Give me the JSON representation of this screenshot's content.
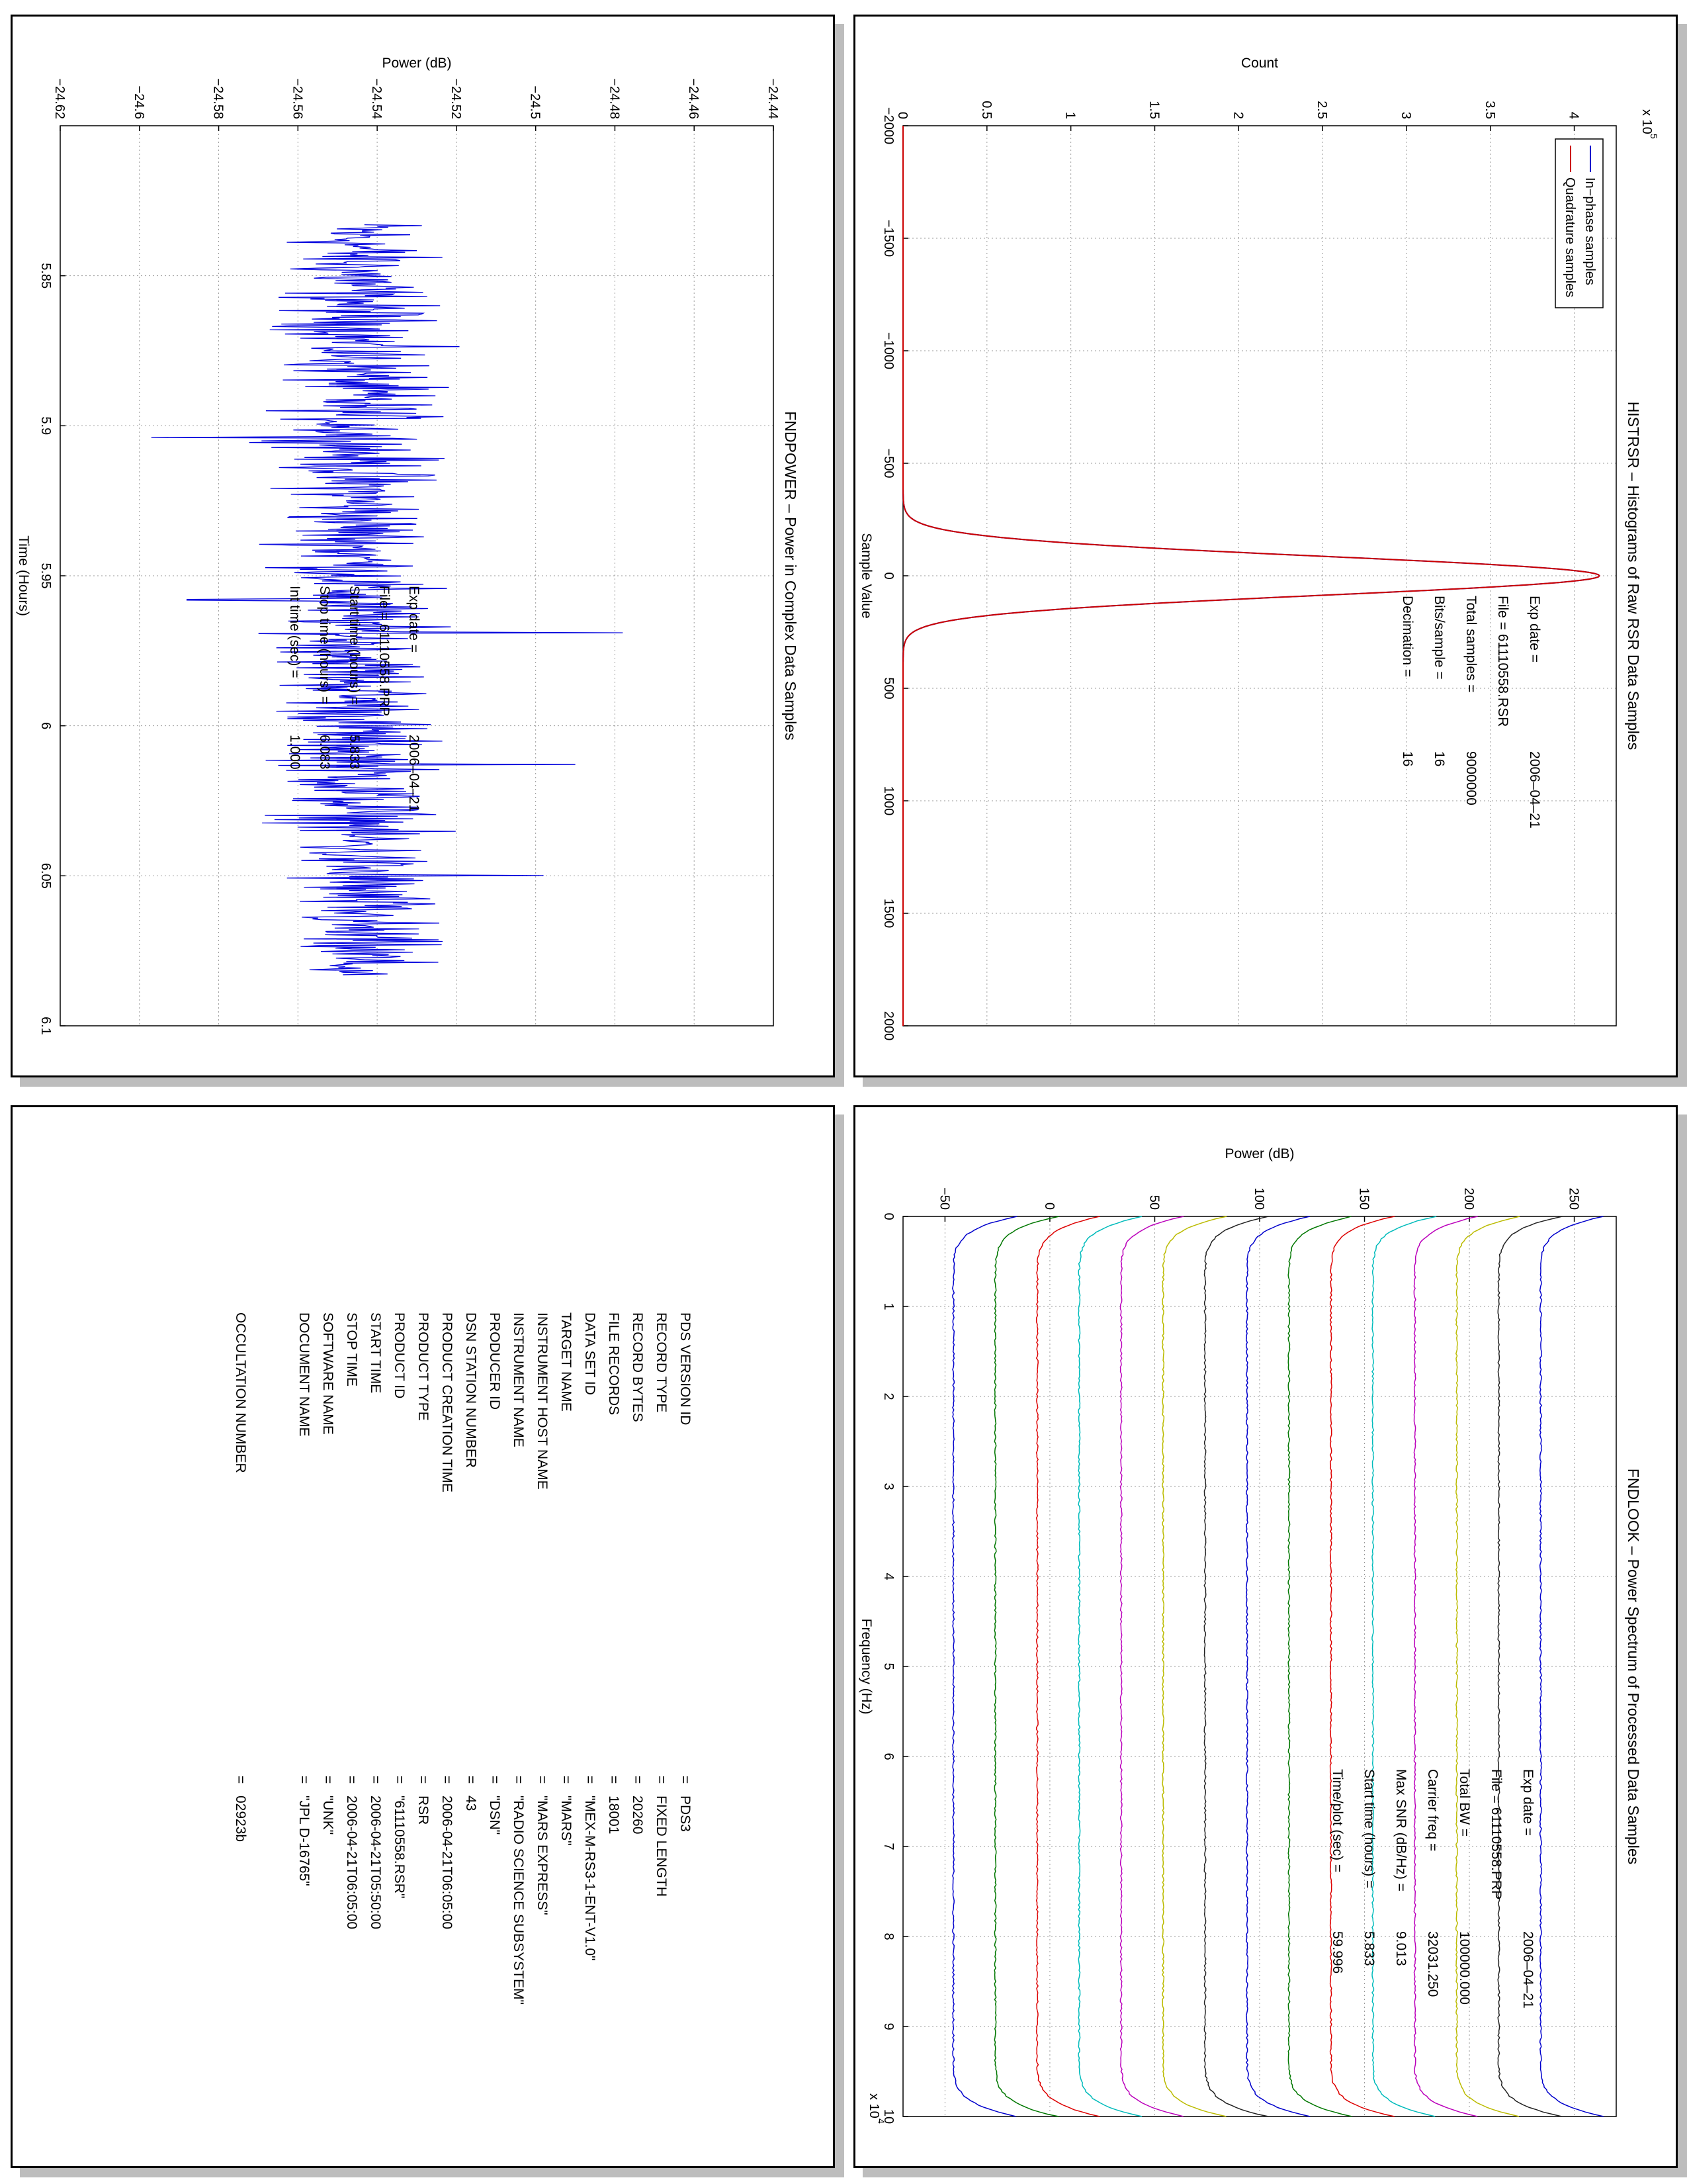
{
  "panels": {
    "fndpower": {
      "title": "FNDPOWER – Power in Complex Data Samples",
      "info": [
        {
          "k": "Exp date =",
          "v": "2006–04–21"
        },
        {
          "k": "File = 61110558.PRP",
          "v": ""
        },
        {
          "k": "Start time (hours) =",
          "v": "5.833"
        },
        {
          "k": "Stop time (hours) =",
          "v": "6.083"
        },
        {
          "k": "Int time (sec) =",
          "v": "1.000"
        }
      ]
    },
    "histrsr": {
      "title": "HISTRSR – Histograms of Raw RSR Data Samples",
      "info": [
        {
          "k": "Exp date =",
          "v": "2006–04–21"
        },
        {
          "k": "File = 61110558.RSR",
          "v": ""
        },
        {
          "k": "Total samples =",
          "v": "9000000"
        },
        {
          "k": "Bits/sample =",
          "v": "16"
        },
        {
          "k": "Decimation =",
          "v": "16"
        }
      ]
    },
    "fndlook": {
      "title": "FNDLOOK – Power Spectrum of Processed Data Samples",
      "info": [
        {
          "k": "Exp date =",
          "v": "2006–04–21"
        },
        {
          "k": "File = 61110558.PRP",
          "v": ""
        },
        {
          "k": "Total BW =",
          "v": "100000.000"
        },
        {
          "k": "Carrier freq =",
          "v": "32031.250"
        },
        {
          "k": "Max SNR (dB/Hz) =",
          "v": "9.013"
        },
        {
          "k": "Start time (hours) =",
          "v": "5.833"
        },
        {
          "k": "Time/plot (sec) =",
          "v": "59.996"
        }
      ]
    },
    "label": {
      "rows": [
        {
          "k": "PDS VERSION ID",
          "v": "PDS3"
        },
        {
          "k": "RECORD TYPE",
          "v": "FIXED LENGTH"
        },
        {
          "k": "RECORD BYTES",
          "v": "20260"
        },
        {
          "k": "FILE RECORDS",
          "v": "18001"
        },
        {
          "k": "DATA SET ID",
          "v": "\"MEX-M-RS3-1-ENT-V1.0\""
        },
        {
          "k": "TARGET NAME",
          "v": "\"MARS\""
        },
        {
          "k": "INSTRUMENT HOST NAME",
          "v": "\"MARS EXPRESS\""
        },
        {
          "k": "INSTRUMENT NAME",
          "v": "\"RADIO SCIENCE SUBSYSTEM\""
        },
        {
          "k": "PRODUCER ID",
          "v": "\"DSN\""
        },
        {
          "k": "DSN STATION NUMBER",
          "v": "43"
        },
        {
          "k": "PRODUCT CREATION TIME",
          "v": "2006-04-21T06:05:00"
        },
        {
          "k": "PRODUCT TYPE",
          "v": "RSR"
        },
        {
          "k": "PRODUCT ID",
          "v": "\"61110558.RSR\""
        },
        {
          "k": "START TIME",
          "v": "2006-04-21T05:50:00"
        },
        {
          "k": "STOP TIME",
          "v": "2006-04-21T06:05:00"
        },
        {
          "k": "SOFTWARE NAME",
          "v": "\"UNK\""
        },
        {
          "k": "DOCUMENT NAME",
          "v": "\"JPL D-16765\""
        }
      ],
      "occultation": {
        "k": "OCCULTATION NUMBER",
        "v": "02923b"
      }
    }
  },
  "chart_data": [
    {
      "id": "fndpower",
      "type": "line",
      "title": "FNDPOWER – Power in Complex Data Samples",
      "xlabel": "Time (Hours)",
      "ylabel": "Power (dB)",
      "xlim": [
        5.8,
        6.1
      ],
      "ylim": [
        -24.62,
        -24.44
      ],
      "xticks": [
        5.85,
        5.9,
        5.95,
        6,
        6.05,
        6.1
      ],
      "xtick_labels": [
        "5.85",
        "5.9",
        "5.95",
        "6",
        "6.05",
        "6.1"
      ],
      "yticks": [
        -24.62,
        -24.6,
        -24.58,
        -24.56,
        -24.54,
        -24.52,
        -24.5,
        -24.48,
        -24.46,
        -24.44
      ],
      "ytick_labels": [
        "−24.62",
        "−24.6",
        "−24.58",
        "−24.56",
        "−24.54",
        "−24.52",
        "−24.5",
        "−24.48",
        "−24.46",
        "−24.44"
      ],
      "grid": true,
      "color": "#0000dd",
      "series_summary": {
        "x_start": 5.833,
        "x_end": 6.083,
        "samples": 900,
        "mean": -24.545,
        "spread": 0.012,
        "min": -24.597,
        "max": -24.478
      },
      "spikes": [
        [
          5.904,
          -24.597
        ],
        [
          5.969,
          -24.478
        ],
        [
          6.013,
          -24.49
        ],
        [
          5.958,
          -24.588
        ],
        [
          6.05,
          -24.498
        ]
      ]
    },
    {
      "id": "histrsr",
      "type": "line",
      "title": "HISTRSR – Histograms of Raw RSR Data Samples",
      "xlabel": "Sample Value",
      "ylabel": "Count",
      "y_multiplier": "x 10",
      "y_multiplier_exp": "5",
      "xlim": [
        -2000,
        2000
      ],
      "ylim": [
        0,
        4.25
      ],
      "xticks": [
        -2000,
        -1500,
        -1000,
        -500,
        0,
        500,
        1000,
        1500,
        2000
      ],
      "xtick_labels": [
        "−2000",
        "−1500",
        "−1000",
        "−500",
        "0",
        "500",
        "1000",
        "1500",
        "2000"
      ],
      "yticks": [
        0,
        0.5,
        1,
        1.5,
        2,
        2.5,
        3,
        3.5,
        4
      ],
      "ytick_labels": [
        "0",
        "0.5",
        "1",
        "1.5",
        "2",
        "2.5",
        "3",
        "3.5",
        "4"
      ],
      "grid": true,
      "legend_position": "top-left",
      "series": [
        {
          "name": "In−phase samples",
          "color": "#0000cc",
          "peak": 4.15,
          "center": 0,
          "sigma": 86
        },
        {
          "name": "Quadrature samples",
          "color": "#cc0000",
          "peak": 4.15,
          "center": 0,
          "sigma": 86
        }
      ]
    },
    {
      "id": "fndlook",
      "type": "line",
      "title": "FNDLOOK – Power Spectrum of Processed Data Samples",
      "xlabel": "Frequency (Hz)",
      "ylabel": "Power (dB)",
      "x_multiplier": "x 10",
      "x_multiplier_exp": "4",
      "xlim": [
        0,
        100000
      ],
      "ylim": [
        -70,
        270
      ],
      "xticks": [
        0,
        10000,
        20000,
        30000,
        40000,
        50000,
        60000,
        70000,
        80000,
        90000,
        100000
      ],
      "xtick_labels": [
        "0",
        "1",
        "2",
        "3",
        "4",
        "5",
        "6",
        "7",
        "8",
        "9",
        "10"
      ],
      "yticks": [
        -50,
        0,
        50,
        100,
        150,
        200,
        250
      ],
      "ytick_labels": [
        "−50",
        "0",
        "50",
        "100",
        "150",
        "200",
        "250"
      ],
      "grid": true,
      "series": [
        {
          "color": "#0000cc",
          "plateau": -46
        },
        {
          "color": "#007700",
          "plateau": -26
        },
        {
          "color": "#dd0000",
          "plateau": -6
        },
        {
          "color": "#00bbbb",
          "plateau": 14
        },
        {
          "color": "#bb00bb",
          "plateau": 34
        },
        {
          "color": "#bbbb00",
          "plateau": 54
        },
        {
          "color": "#222222",
          "plateau": 74
        },
        {
          "color": "#0000cc",
          "plateau": 94
        },
        {
          "color": "#007700",
          "plateau": 114
        },
        {
          "color": "#dd0000",
          "plateau": 134
        },
        {
          "color": "#00bbbb",
          "plateau": 154
        },
        {
          "color": "#bb00bb",
          "plateau": 174
        },
        {
          "color": "#bbbb00",
          "plateau": 194
        },
        {
          "color": "#222222",
          "plateau": 214
        },
        {
          "color": "#0000cc",
          "plateau": 234
        }
      ]
    }
  ]
}
